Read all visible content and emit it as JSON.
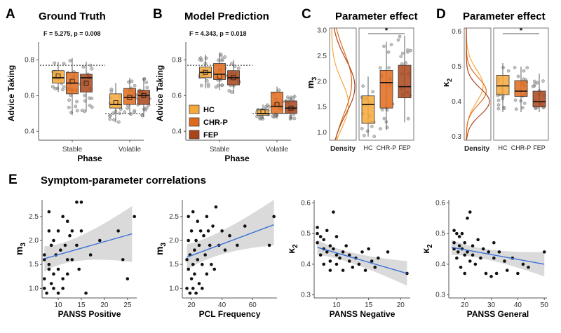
{
  "panels": {
    "A": {
      "letter": "A",
      "title": "Ground Truth",
      "stat_text": "F = 5.275, p = 0.008",
      "ylabel": "Advice Taking",
      "xlabel": "Phase",
      "ylim": [
        0.35,
        0.9
      ],
      "yticks": [
        "0.4",
        "0.6",
        "0.8"
      ],
      "ytick_values": [
        0.4,
        0.6,
        0.8
      ],
      "ref_lines": [
        0.77,
        0.5
      ],
      "phases": [
        "Stable",
        "Volatile"
      ],
      "boxes": [
        {
          "phase": "Stable",
          "group": "HC",
          "q1": 0.67,
          "median": 0.7,
          "q3": 0.74,
          "lo": 0.62,
          "hi": 0.79,
          "mean": 0.71
        },
        {
          "phase": "Stable",
          "group": "CHR-P",
          "q1": 0.61,
          "median": 0.67,
          "q3": 0.73,
          "lo": 0.49,
          "hi": 0.81,
          "mean": 0.68
        },
        {
          "phase": "Stable",
          "group": "FEP",
          "q1": 0.62,
          "median": 0.7,
          "q3": 0.72,
          "lo": 0.51,
          "hi": 0.79,
          "mean": 0.67
        },
        {
          "phase": "Volatile",
          "group": "HC",
          "q1": 0.53,
          "median": 0.55,
          "q3": 0.61,
          "lo": 0.45,
          "hi": 0.67,
          "mean": 0.56
        },
        {
          "phase": "Volatile",
          "group": "CHR-P",
          "q1": 0.55,
          "median": 0.59,
          "q3": 0.64,
          "lo": 0.49,
          "hi": 0.7,
          "mean": 0.59
        },
        {
          "phase": "Volatile",
          "group": "FEP",
          "q1": 0.55,
          "median": 0.6,
          "q3": 0.63,
          "lo": 0.48,
          "hi": 0.7,
          "mean": 0.6
        }
      ]
    },
    "B": {
      "letter": "B",
      "title": "Model Prediction",
      "stat_text": "F = 4.343, p = 0.018",
      "ylabel": "Advice Taking",
      "xlabel": "Phase",
      "ylim": [
        0.35,
        0.9
      ],
      "yticks": [
        "0.4",
        "0.6",
        "0.8"
      ],
      "ytick_values": [
        0.4,
        0.6,
        0.8
      ],
      "ref_lines": [
        0.77,
        0.5
      ],
      "phases": [
        "Stable",
        "Volatile"
      ],
      "legend": [
        "HC",
        "CHR-P",
        "FEP"
      ],
      "boxes": [
        {
          "phase": "Stable",
          "group": "HC",
          "q1": 0.7,
          "median": 0.73,
          "q3": 0.76,
          "lo": 0.64,
          "hi": 0.83,
          "mean": 0.73
        },
        {
          "phase": "Stable",
          "group": "CHR-P",
          "q1": 0.69,
          "median": 0.72,
          "q3": 0.78,
          "lo": 0.63,
          "hi": 0.84,
          "mean": 0.71
        },
        {
          "phase": "Stable",
          "group": "FEP",
          "q1": 0.66,
          "median": 0.7,
          "q3": 0.74,
          "lo": 0.61,
          "hi": 0.8,
          "mean": 0.7
        },
        {
          "phase": "Volatile",
          "group": "HC",
          "q1": 0.49,
          "median": 0.5,
          "q3": 0.52,
          "lo": 0.47,
          "hi": 0.55,
          "mean": 0.51
        },
        {
          "phase": "Volatile",
          "group": "CHR-P",
          "q1": 0.5,
          "median": 0.54,
          "q3": 0.62,
          "lo": 0.47,
          "hi": 0.65,
          "mean": 0.55
        },
        {
          "phase": "Volatile",
          "group": "FEP",
          "q1": 0.5,
          "median": 0.53,
          "q3": 0.57,
          "lo": 0.47,
          "hi": 0.6,
          "mean": 0.53
        }
      ]
    },
    "C": {
      "letter": "C",
      "title": "Parameter effect",
      "ylabel": "m3",
      "ylabel_main": "m",
      "ylabel_sub": "3",
      "density_label": "Density",
      "ylim": [
        0.85,
        3.05
      ],
      "yticks": [
        "1.0",
        "1.5",
        "2.0",
        "2.5",
        "3.0"
      ],
      "ytick_values": [
        1.0,
        1.5,
        2.0,
        2.5,
        3.0
      ],
      "groups": [
        "HC",
        "CHR-P",
        "FEP"
      ],
      "significance": "*",
      "boxes": [
        {
          "group": "HC",
          "q1": 1.18,
          "median": 1.55,
          "q3": 1.72,
          "lo": 0.92,
          "hi": 2.1,
          "mean": 1.45
        },
        {
          "group": "CHR-P",
          "q1": 1.48,
          "median": 1.98,
          "q3": 2.22,
          "lo": 1.05,
          "hi": 2.78,
          "mean": 1.84
        },
        {
          "group": "FEP",
          "q1": 1.68,
          "median": 1.9,
          "q3": 2.32,
          "lo": 1.2,
          "hi": 2.9,
          "mean": 1.97
        }
      ]
    },
    "D": {
      "letter": "D",
      "title": "Parameter effect",
      "ylabel": "κ2",
      "ylabel_main": "κ",
      "ylabel_sub": "2",
      "density_label": "Density",
      "ylim": [
        0.29,
        0.61
      ],
      "yticks": [
        "0.3",
        "0.4",
        "0.5",
        "0.6"
      ],
      "ytick_values": [
        0.3,
        0.4,
        0.5,
        0.6
      ],
      "groups": [
        "HC",
        "CHR-P",
        "FEP"
      ],
      "significance": "*",
      "boxes": [
        {
          "group": "HC",
          "q1": 0.42,
          "median": 0.445,
          "q3": 0.475,
          "lo": 0.37,
          "hi": 0.51,
          "mean": 0.45
        },
        {
          "group": "CHR-P",
          "q1": 0.415,
          "median": 0.43,
          "q3": 0.46,
          "lo": 0.37,
          "hi": 0.5,
          "mean": 0.435
        },
        {
          "group": "FEP",
          "q1": 0.385,
          "median": 0.4,
          "q3": 0.43,
          "lo": 0.37,
          "hi": 0.48,
          "mean": 0.41
        }
      ]
    },
    "E": {
      "letter": "E",
      "title": "Symptom-parameter correlations"
    }
  },
  "chart_data": [
    {
      "type": "scatter",
      "title": "",
      "xlabel": "PANSS Positive",
      "ylabel": "m3",
      "ylabel_main": "m",
      "ylabel_sub": "3",
      "xlim": [
        6.5,
        27
      ],
      "ylim": [
        0.8,
        2.85
      ],
      "xticks": [
        10,
        15,
        20,
        25
      ],
      "yticks": [
        1.0,
        1.5,
        2.0,
        2.5
      ],
      "yticklabels": [
        "1.0",
        "1.5",
        "2.0",
        "2.5"
      ],
      "fit": {
        "x0": 7,
        "y0": 1.62,
        "x1": 26,
        "y1": 2.14
      },
      "band": {
        "lo0": 1.35,
        "hi0": 1.88,
        "lomid": 1.7,
        "himid": 1.9,
        "lo1": 1.55,
        "hi1": 2.72,
        "xmid": 13
      },
      "points": [
        [
          7,
          1.6
        ],
        [
          7,
          1.2
        ],
        [
          7,
          1.0
        ],
        [
          7.5,
          0.9
        ],
        [
          7,
          1.7
        ],
        [
          8,
          1.5
        ],
        [
          8,
          2.2
        ],
        [
          8,
          1.4
        ],
        [
          8,
          2.6
        ],
        [
          8.5,
          1.1
        ],
        [
          8.5,
          1.9
        ],
        [
          9,
          1.0
        ],
        [
          9,
          1.3
        ],
        [
          9,
          2.0
        ],
        [
          9.5,
          1.7
        ],
        [
          10,
          2.2
        ],
        [
          10,
          1.4
        ],
        [
          10,
          0.9
        ],
        [
          10.5,
          1.8
        ],
        [
          11,
          1.2
        ],
        [
          11,
          2.5
        ],
        [
          11,
          1.0
        ],
        [
          11.5,
          1.9
        ],
        [
          12,
          1.6
        ],
        [
          12,
          2.4
        ],
        [
          12,
          1.3
        ],
        [
          12.5,
          2.1
        ],
        [
          13,
          2.2
        ],
        [
          13,
          1.6
        ],
        [
          14,
          2.8
        ],
        [
          14,
          1.9
        ],
        [
          14.5,
          1.4
        ],
        [
          15,
          2.8
        ],
        [
          15,
          2.2
        ],
        [
          16,
          0.9
        ],
        [
          17,
          1.7
        ],
        [
          19,
          2.0
        ],
        [
          23,
          2.2
        ],
        [
          24,
          1.6
        ],
        [
          25,
          1.2
        ],
        [
          26.5,
          2.5
        ]
      ]
    },
    {
      "type": "scatter",
      "title": "",
      "xlabel": "PCL Frequency",
      "ylabel": "m3",
      "ylabel_main": "m",
      "ylabel_sub": "3",
      "xlim": [
        14,
        76
      ],
      "ylim": [
        0.8,
        2.85
      ],
      "xticks": [
        20,
        40,
        60
      ],
      "yticks": [
        1.0,
        1.5,
        2.0,
        2.5
      ],
      "yticklabels": [
        "1.0",
        "1.5",
        "2.0",
        "2.5"
      ],
      "fit": {
        "x0": 17,
        "y0": 1.65,
        "x1": 74,
        "y1": 2.33
      },
      "band": {
        "lo0": 1.38,
        "hi0": 1.92,
        "lomid": 1.78,
        "himid": 2.04,
        "lo1": 1.9,
        "hi1": 2.85,
        "xmid": 35
      },
      "points": [
        [
          17,
          1.6
        ],
        [
          17,
          1.0
        ],
        [
          18,
          2.0
        ],
        [
          18,
          1.4
        ],
        [
          18,
          2.5
        ],
        [
          19,
          0.9
        ],
        [
          19,
          1.7
        ],
        [
          20,
          1.2
        ],
        [
          20,
          2.2
        ],
        [
          21,
          1.5
        ],
        [
          21,
          1.0
        ],
        [
          21,
          2.6
        ],
        [
          22,
          1.8
        ],
        [
          22,
          1.3
        ],
        [
          23,
          0.9
        ],
        [
          23,
          2.0
        ],
        [
          24,
          1.6
        ],
        [
          24,
          2.4
        ],
        [
          25,
          1.1
        ],
        [
          25,
          1.9
        ],
        [
          26,
          2.2
        ],
        [
          27,
          1.5
        ],
        [
          27,
          1.0
        ],
        [
          28,
          2.1
        ],
        [
          29,
          1.7
        ],
        [
          30,
          2.5
        ],
        [
          30,
          1.3
        ],
        [
          31,
          2.2
        ],
        [
          32,
          1.9
        ],
        [
          33,
          1.5
        ],
        [
          34,
          2.3
        ],
        [
          35,
          1.4
        ],
        [
          36,
          2.7
        ],
        [
          38,
          1.9
        ],
        [
          40,
          2.2
        ],
        [
          42,
          1.8
        ],
        [
          45,
          2.1
        ],
        [
          50,
          1.9
        ],
        [
          55,
          2.3
        ],
        [
          71,
          1.9
        ],
        [
          74,
          2.5
        ]
      ]
    },
    {
      "type": "scatter",
      "title": "",
      "xlabel": "PANSS Negative",
      "ylabel": "κ2",
      "ylabel_main": "κ",
      "ylabel_sub": "2",
      "xlim": [
        6.5,
        21.5
      ],
      "ylim": [
        0.29,
        0.61
      ],
      "xticks": [
        10,
        15,
        20
      ],
      "yticks": [
        0.3,
        0.4,
        0.5,
        0.6
      ],
      "yticklabels": [
        "0.3",
        "0.4",
        "0.5",
        "0.6"
      ],
      "fit": {
        "x0": 7,
        "y0": 0.455,
        "x1": 21,
        "y1": 0.37
      },
      "band": {
        "lo0": 0.43,
        "hi0": 0.48,
        "lomid": 0.415,
        "himid": 0.44,
        "lo1": 0.33,
        "hi1": 0.41,
        "xmid": 11
      },
      "points": [
        [
          7,
          0.52
        ],
        [
          7,
          0.5
        ],
        [
          7,
          0.47
        ],
        [
          7.5,
          0.43
        ],
        [
          7.5,
          0.49
        ],
        [
          8,
          0.45
        ],
        [
          8,
          0.48
        ],
        [
          8,
          0.4
        ],
        [
          8.5,
          0.51
        ],
        [
          8.5,
          0.44
        ],
        [
          9,
          0.41
        ],
        [
          9,
          0.46
        ],
        [
          9,
          0.38
        ],
        [
          9.5,
          0.45
        ],
        [
          9.5,
          0.57
        ],
        [
          10,
          0.43
        ],
        [
          10,
          0.4
        ],
        [
          10,
          0.49
        ],
        [
          10.5,
          0.42
        ],
        [
          11,
          0.44
        ],
        [
          11,
          0.38
        ],
        [
          11.5,
          0.46
        ],
        [
          12,
          0.41
        ],
        [
          12,
          0.43
        ],
        [
          12.5,
          0.39
        ],
        [
          13,
          0.42
        ],
        [
          13.5,
          0.4
        ],
        [
          14,
          0.44
        ],
        [
          14.5,
          0.38
        ],
        [
          15,
          0.45
        ],
        [
          15.5,
          0.41
        ],
        [
          16,
          0.39
        ],
        [
          16.5,
          0.42
        ],
        [
          18,
          0.44
        ],
        [
          21,
          0.37
        ]
      ]
    },
    {
      "type": "scatter",
      "title": "",
      "xlabel": "PANSS General",
      "ylabel": "κ2",
      "ylabel_main": "κ",
      "ylabel_sub": "2",
      "xlim": [
        14,
        51
      ],
      "ylim": [
        0.29,
        0.61
      ],
      "xticks": [
        20,
        30,
        40,
        50
      ],
      "yticks": [
        0.3,
        0.4,
        0.5,
        0.6
      ],
      "yticklabels": [
        "0.3",
        "0.4",
        "0.5",
        "0.6"
      ],
      "fit": {
        "x0": 15,
        "y0": 0.455,
        "x1": 50,
        "y1": 0.4
      },
      "band": {
        "lo0": 0.43,
        "hi0": 0.48,
        "lomid": 0.42,
        "himid": 0.445,
        "lo1": 0.36,
        "hi1": 0.44,
        "xmid": 27
      },
      "points": [
        [
          16,
          0.51
        ],
        [
          16,
          0.45
        ],
        [
          16,
          0.47
        ],
        [
          17,
          0.42
        ],
        [
          17,
          0.5
        ],
        [
          17.5,
          0.44
        ],
        [
          18,
          0.49
        ],
        [
          18,
          0.46
        ],
        [
          18.5,
          0.39
        ],
        [
          19,
          0.45
        ],
        [
          19,
          0.5
        ],
        [
          20,
          0.43
        ],
        [
          20,
          0.47
        ],
        [
          20,
          0.37
        ],
        [
          21,
          0.44
        ],
        [
          21,
          0.55
        ],
        [
          22,
          0.57
        ],
        [
          22,
          0.41
        ],
        [
          23,
          0.46
        ],
        [
          23,
          0.43
        ],
        [
          24,
          0.4
        ],
        [
          25,
          0.48
        ],
        [
          26,
          0.42
        ],
        [
          27,
          0.45
        ],
        [
          28,
          0.37
        ],
        [
          29,
          0.44
        ],
        [
          30,
          0.36
        ],
        [
          31,
          0.42
        ],
        [
          31,
          0.47
        ],
        [
          32,
          0.37
        ],
        [
          33,
          0.44
        ],
        [
          35,
          0.41
        ],
        [
          36,
          0.38
        ],
        [
          38,
          0.42
        ],
        [
          40,
          0.37
        ],
        [
          42,
          0.4
        ],
        [
          44,
          0.39
        ],
        [
          50,
          0.44
        ]
      ]
    }
  ],
  "colors": {
    "HC": "#f6a83a",
    "CHR-P": "#e06a1b",
    "FEP": "#a8451a",
    "fit_line": "#3b6fd6",
    "band": "#d3d3d3"
  }
}
